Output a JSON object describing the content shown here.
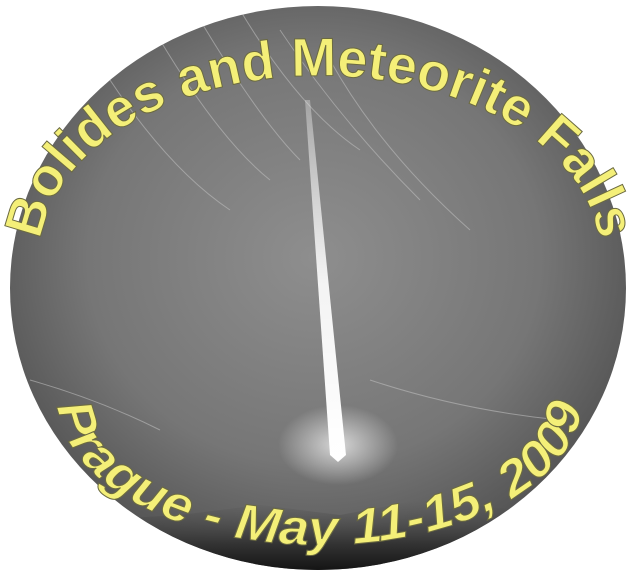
{
  "title": "Bolides and Meteorite Falls",
  "subtitle": "Prague - May 11-15, 2009"
}
